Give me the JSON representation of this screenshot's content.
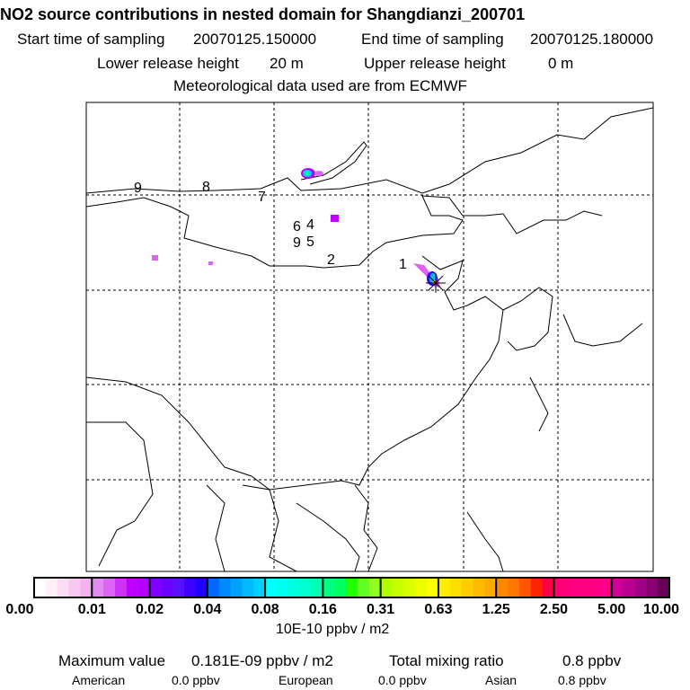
{
  "header": {
    "title": "NO2 source contributions in nested domain for Shangdianzi_200701",
    "start_label": "Start time of sampling",
    "start_value": "20070125.150000",
    "end_label": "End time of sampling",
    "end_value": "20070125.180000",
    "lower_label": "Lower release height",
    "lower_value": "20 m",
    "upper_label": "Upper release height",
    "upper_value": "0 m",
    "met": "Meteorological data used are from ECMWF"
  },
  "map": {
    "source_labels": [
      "1",
      "2",
      "4",
      "5",
      "6",
      "7",
      "8",
      "9",
      "9"
    ]
  },
  "colorbar": {
    "ticks": [
      "0.00",
      "0.01",
      "0.02",
      "0.04",
      "0.08",
      "0.16",
      "0.31",
      "0.63",
      "1.25",
      "2.50",
      "5.00",
      "10.00"
    ],
    "unit": "10E-10 ppbv / m2",
    "segments": [
      [
        "#ffffff",
        "#fff0fa",
        "#fbdcf5",
        "#f7c8f2",
        "#f2b4f0"
      ],
      [
        "#e28cf2",
        "#dc64f5",
        "#cc33f5",
        "#c000ff",
        "#b400ff"
      ],
      [
        "#8000ff",
        "#6a00ff",
        "#5a10ff",
        "#3c00ff",
        "#2000ff"
      ],
      [
        "#0066ff",
        "#0088ff",
        "#00a0ff",
        "#00bbff",
        "#00d0ff"
      ],
      [
        "#00ffff",
        "#00fff0",
        "#00ffdc",
        "#00ffcc",
        "#00ffb4"
      ],
      [
        "#00ff80",
        "#00ff60",
        "#20ff00",
        "#60ff20",
        "#90ff20"
      ],
      [
        "#b0ff00",
        "#c8ff00",
        "#dcff00",
        "#eeff00",
        "#ffff00"
      ],
      [
        "#ffee00",
        "#ffdd00",
        "#ffcc00",
        "#ffbb00",
        "#ffaa00"
      ],
      [
        "#ff8800",
        "#ff7700",
        "#ff5500",
        "#ff2200",
        "#ff0044"
      ],
      [
        "#ff0077",
        "#ff0080",
        "#ff0080",
        "#ff0080",
        "#ff0088"
      ],
      [
        "#cc0099",
        "#bb0090",
        "#a00088",
        "#880070",
        "#660055"
      ]
    ]
  },
  "footer": {
    "max_label": "Maximum value",
    "max_value": "0.181E-09 ppbv / m2",
    "total_label": "Total mixing ratio",
    "total_value": "0.8 ppbv",
    "american_label": "American",
    "american_value": "0.0 ppbv",
    "european_label": "European",
    "european_value": "0.0 ppbv",
    "asian_label": "Asian",
    "asian_value": "0.8 ppbv"
  }
}
